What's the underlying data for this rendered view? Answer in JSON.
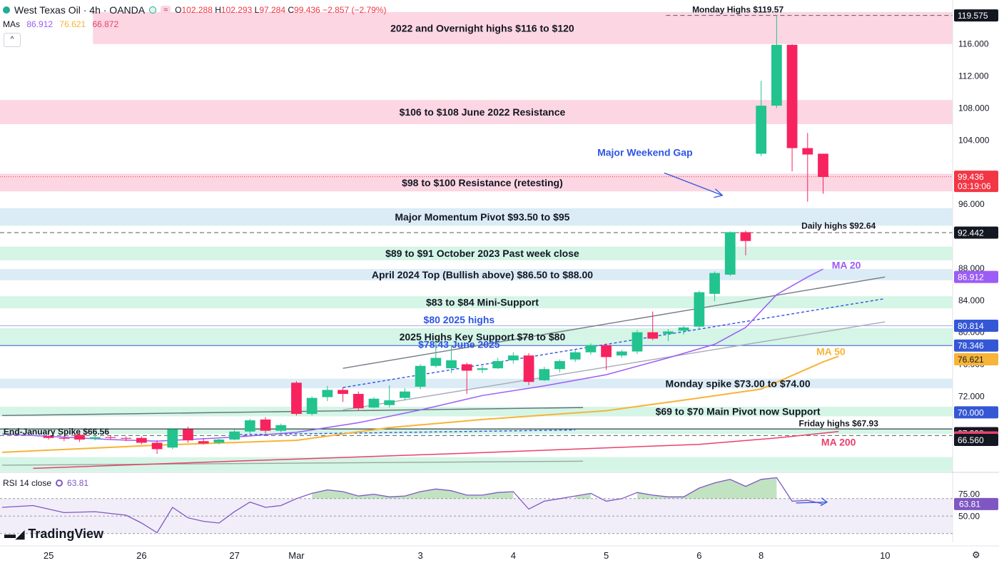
{
  "header": {
    "symbol": "West Texas Oil · 4h · OANDA",
    "badge": "≈",
    "ohlc": [
      {
        "k": "O",
        "v": "102.288"
      },
      {
        "k": "H",
        "v": "102.293"
      },
      {
        "k": "L",
        "v": "97.284"
      },
      {
        "k": "C",
        "v": "99.436"
      },
      {
        "k": "",
        "v": "−2.857 (−2.79%)"
      }
    ],
    "mas_label": "MAs",
    "mas_values": [
      "86.912",
      "76.621",
      "66.872"
    ],
    "collapse_glyph": "^"
  },
  "rsi_header": {
    "label": "RSI 14 close",
    "value": "63.81"
  },
  "brand": "TradingView",
  "colors": {
    "bull": "#22c38e",
    "bear": "#f7235e",
    "ma20": "#9c5cf5",
    "ma50": "#f7b437",
    "ma200": "#e9416b",
    "pink_zone": "#fcd6e2",
    "blue_zone": "#dcecf6",
    "green_zone": "#d5f5e6",
    "annotation_blue": "#2f55e4",
    "rsi": "#7e57c2"
  },
  "chart_data": {
    "type": "candlestick",
    "interval": "4h",
    "ylim": [
      62.5,
      121.5
    ],
    "yticks": [
      72,
      76,
      80,
      84,
      88,
      96,
      104,
      108,
      112,
      116
    ],
    "ytick_labels": [
      "72.000",
      "76.000",
      "80.000",
      "84.000",
      "88.000",
      "96.000",
      "104.000",
      "108.000",
      "112.000",
      "116.000"
    ],
    "xlim": [
      0,
      123
    ],
    "xticks": [
      {
        "x": 6,
        "label": "25"
      },
      {
        "x": 18,
        "label": "26"
      },
      {
        "x": 30,
        "label": "27"
      },
      {
        "x": 38,
        "label": "Mar"
      },
      {
        "x": 54,
        "label": "3"
      },
      {
        "x": 66,
        "label": "4"
      },
      {
        "x": 78,
        "label": "5"
      },
      {
        "x": 90,
        "label": "6"
      },
      {
        "x": 98,
        "label": "8"
      },
      {
        "x": 114,
        "label": "10"
      }
    ],
    "candles": [
      {
        "x": 6,
        "o": 67.0,
        "h": 67.2,
        "l": 66.6,
        "c": 66.8
      },
      {
        "x": 8,
        "o": 66.8,
        "h": 67.0,
        "l": 66.4,
        "c": 66.7
      },
      {
        "x": 10,
        "o": 67.2,
        "h": 67.5,
        "l": 66.3,
        "c": 66.6
      },
      {
        "x": 12,
        "o": 66.7,
        "h": 67.3,
        "l": 66.5,
        "c": 66.9
      },
      {
        "x": 14,
        "o": 66.9,
        "h": 67.1,
        "l": 66.6,
        "c": 66.8
      },
      {
        "x": 16,
        "o": 66.8,
        "h": 67.0,
        "l": 66.4,
        "c": 66.7
      },
      {
        "x": 18,
        "o": 66.8,
        "h": 67.0,
        "l": 66.0,
        "c": 66.2
      },
      {
        "x": 20,
        "o": 66.2,
        "h": 66.5,
        "l": 64.8,
        "c": 65.4
      },
      {
        "x": 22,
        "o": 65.6,
        "h": 68.0,
        "l": 65.4,
        "c": 67.9
      },
      {
        "x": 24,
        "o": 67.9,
        "h": 68.2,
        "l": 66.2,
        "c": 66.5
      },
      {
        "x": 26,
        "o": 66.4,
        "h": 66.8,
        "l": 66.0,
        "c": 66.1
      },
      {
        "x": 28,
        "o": 66.2,
        "h": 66.7,
        "l": 66.0,
        "c": 66.6
      },
      {
        "x": 30,
        "o": 66.6,
        "h": 67.8,
        "l": 66.5,
        "c": 67.6
      },
      {
        "x": 32,
        "o": 67.6,
        "h": 69.2,
        "l": 67.3,
        "c": 69.0
      },
      {
        "x": 34,
        "o": 69.1,
        "h": 69.4,
        "l": 67.4,
        "c": 67.7
      },
      {
        "x": 36,
        "o": 67.7,
        "h": 68.6,
        "l": 67.5,
        "c": 68.4
      },
      {
        "x": 38,
        "o": 73.7,
        "h": 73.9,
        "l": 69.6,
        "c": 69.8
      },
      {
        "x": 40,
        "o": 69.8,
        "h": 72.0,
        "l": 69.6,
        "c": 71.8
      },
      {
        "x": 42,
        "o": 71.9,
        "h": 73.3,
        "l": 71.4,
        "c": 72.8
      },
      {
        "x": 44,
        "o": 72.8,
        "h": 73.1,
        "l": 71.3,
        "c": 72.3
      },
      {
        "x": 46,
        "o": 72.3,
        "h": 72.6,
        "l": 70.2,
        "c": 70.5
      },
      {
        "x": 48,
        "o": 70.6,
        "h": 71.9,
        "l": 70.5,
        "c": 71.7
      },
      {
        "x": 50,
        "o": 70.9,
        "h": 73.4,
        "l": 70.6,
        "c": 71.5
      },
      {
        "x": 52,
        "o": 71.8,
        "h": 73.0,
        "l": 71.5,
        "c": 72.6
      },
      {
        "x": 54,
        "o": 73.2,
        "h": 76.0,
        "l": 72.9,
        "c": 75.8
      },
      {
        "x": 56,
        "o": 75.8,
        "h": 78.7,
        "l": 75.6,
        "c": 76.8
      },
      {
        "x": 58,
        "o": 75.5,
        "h": 78.3,
        "l": 74.9,
        "c": 76.5
      },
      {
        "x": 60,
        "o": 76.0,
        "h": 76.2,
        "l": 72.3,
        "c": 75.2
      },
      {
        "x": 62,
        "o": 75.3,
        "h": 75.8,
        "l": 74.9,
        "c": 75.5
      },
      {
        "x": 64,
        "o": 75.5,
        "h": 76.8,
        "l": 75.4,
        "c": 76.4
      },
      {
        "x": 66,
        "o": 76.5,
        "h": 77.5,
        "l": 76.1,
        "c": 77.1
      },
      {
        "x": 68,
        "o": 77.1,
        "h": 77.4,
        "l": 73.4,
        "c": 73.8
      },
      {
        "x": 70,
        "o": 74.0,
        "h": 75.7,
        "l": 73.9,
        "c": 75.4
      },
      {
        "x": 72,
        "o": 75.4,
        "h": 76.6,
        "l": 75.0,
        "c": 76.4
      },
      {
        "x": 74,
        "o": 76.6,
        "h": 77.8,
        "l": 76.3,
        "c": 77.5
      },
      {
        "x": 76,
        "o": 77.5,
        "h": 78.6,
        "l": 77.2,
        "c": 78.4
      },
      {
        "x": 78,
        "o": 78.4,
        "h": 78.6,
        "l": 75.3,
        "c": 76.9
      },
      {
        "x": 80,
        "o": 77.1,
        "h": 77.8,
        "l": 76.8,
        "c": 77.6
      },
      {
        "x": 82,
        "o": 77.6,
        "h": 80.3,
        "l": 77.3,
        "c": 80.0
      },
      {
        "x": 84,
        "o": 80.0,
        "h": 82.6,
        "l": 79.0,
        "c": 79.2
      },
      {
        "x": 86,
        "o": 79.8,
        "h": 80.4,
        "l": 78.9,
        "c": 80.1
      },
      {
        "x": 88,
        "o": 80.2,
        "h": 80.8,
        "l": 79.7,
        "c": 80.6
      },
      {
        "x": 90,
        "o": 80.7,
        "h": 85.2,
        "l": 80.5,
        "c": 85.0
      },
      {
        "x": 92,
        "o": 84.8,
        "h": 87.6,
        "l": 83.9,
        "c": 87.4
      },
      {
        "x": 94,
        "o": 87.2,
        "h": 92.6,
        "l": 87.0,
        "c": 92.5
      },
      {
        "x": 96,
        "o": 92.5,
        "h": 92.7,
        "l": 89.6,
        "c": 91.4
      },
      {
        "x": 98,
        "o": 102.3,
        "h": 111.4,
        "l": 102.0,
        "c": 108.3
      },
      {
        "x": 100,
        "o": 108.3,
        "h": 119.57,
        "l": 108.0,
        "c": 115.9
      },
      {
        "x": 102,
        "o": 115.9,
        "h": 116.0,
        "l": 100.1,
        "c": 103.0
      },
      {
        "x": 104,
        "o": 103.0,
        "h": 104.9,
        "l": 96.3,
        "c": 102.2
      },
      {
        "x": 106,
        "o": 102.3,
        "h": 102.3,
        "l": 97.3,
        "c": 99.4
      }
    ],
    "series": [
      {
        "name": "MA 20",
        "color": "#9c5cf5",
        "points": [
          [
            0,
            67.3
          ],
          [
            14,
            66.6
          ],
          [
            20,
            66.4
          ],
          [
            30,
            66.9
          ],
          [
            38,
            67.5
          ],
          [
            46,
            68.7
          ],
          [
            54,
            70.3
          ],
          [
            62,
            72.1
          ],
          [
            70,
            73.3
          ],
          [
            78,
            74.7
          ],
          [
            86,
            76.8
          ],
          [
            92,
            78.5
          ],
          [
            96,
            80.6
          ],
          [
            100,
            84.7
          ],
          [
            104,
            86.9
          ],
          [
            106,
            87.9
          ]
        ]
      },
      {
        "name": "MA 50",
        "color": "#f7b437",
        "points": [
          [
            0,
            65.0
          ],
          [
            20,
            65.9
          ],
          [
            38,
            66.5
          ],
          [
            50,
            68.1
          ],
          [
            62,
            69.1
          ],
          [
            78,
            70.2
          ],
          [
            90,
            71.8
          ],
          [
            98,
            72.9
          ],
          [
            102,
            74.6
          ],
          [
            106,
            76.3
          ],
          [
            108,
            77.0
          ]
        ]
      },
      {
        "name": "MA 200",
        "color": "#e9416b",
        "points": [
          [
            4,
            63.0
          ],
          [
            30,
            63.9
          ],
          [
            60,
            64.9
          ],
          [
            90,
            66.0
          ],
          [
            100,
            66.8
          ],
          [
            108,
            67.6
          ]
        ]
      }
    ],
    "trendlines": [
      {
        "points": [
          [
            44,
            75.5
          ],
          [
            114,
            86.9
          ]
        ],
        "color": "#757b85",
        "dash": false
      },
      {
        "points": [
          [
            44,
            73.1
          ],
          [
            114,
            84.2
          ]
        ],
        "color": "#2f55e4",
        "dash": true
      },
      {
        "points": [
          [
            44,
            70.3
          ],
          [
            114,
            81.3
          ]
        ],
        "color": "#a6adb8",
        "dash": false
      },
      {
        "points": [
          [
            0,
            69.6
          ],
          [
            75,
            70.6
          ]
        ],
        "color": "#66727e",
        "dash": false
      },
      {
        "points": [
          [
            30,
            67.2
          ],
          [
            74,
            67.8
          ]
        ],
        "color": "#2f55e4",
        "dash": true
      },
      {
        "points": [
          [
            0,
            63.4
          ],
          [
            75,
            63.9
          ]
        ],
        "color": "#9aa7a0",
        "dash": false
      }
    ],
    "hlines": [
      {
        "y": 119.575,
        "color": "#555c66",
        "dash": true,
        "x0": 86
      },
      {
        "y": 92.442,
        "color": "#555c66",
        "dash": true,
        "x0": 0
      },
      {
        "y": 99.436,
        "color": "#f23645",
        "dash": "dot",
        "x0": 0
      },
      {
        "y": 80.814,
        "color": "#a3b0e6",
        "dash": false,
        "x0": 0
      },
      {
        "y": 78.346,
        "color": "#3457d5",
        "dash": false,
        "x0": 0
      },
      {
        "y": 67.93,
        "color": "#131722",
        "dash": false,
        "x0": 0
      },
      {
        "y": 67.1,
        "color": "#555c66",
        "dash": true,
        "x0": 0
      }
    ],
    "zones": [
      {
        "y0": 116.0,
        "y1": 120.0,
        "color": "#fcd6e2",
        "x0": 12,
        "label": "2022 and Overnight highs $116 to $120"
      },
      {
        "y0": 106.0,
        "y1": 109.0,
        "color": "#fcd6e2",
        "x0": 0,
        "label": "$106 to $108 June 2022 Resistance"
      },
      {
        "y0": 97.6,
        "y1": 99.8,
        "color": "#fcd6e2",
        "x0": 0,
        "label": "$98 to $100 Resistance (retesting)"
      },
      {
        "y0": 93.3,
        "y1": 95.5,
        "color": "#dcecf6",
        "x0": 0,
        "label": "Major Momentum Pivot $93.50 to $95"
      },
      {
        "y0": 89.0,
        "y1": 90.7,
        "color": "#d5f5e6",
        "x0": 0,
        "label": "$89 to $91 October 2023 Past week close"
      },
      {
        "y0": 86.5,
        "y1": 87.9,
        "color": "#dcecf6",
        "x0": 0,
        "label": "April 2024 Top (Bullish above) $86.50 to $88.00"
      },
      {
        "y0": 83.0,
        "y1": 84.5,
        "color": "#d5f5e6",
        "x0": 0,
        "label": "$83 to $84 Mini-Support"
      },
      {
        "y0": 78.4,
        "y1": 80.5,
        "color": "#d5f5e6",
        "x0": 0,
        "label": "2025 Highs Key Support $78 to $80"
      },
      {
        "y0": 73.0,
        "y1": 74.2,
        "color": "#dcecf6",
        "x0": 0,
        "label": "Monday spike $73.00 to $74.00"
      },
      {
        "y0": 69.5,
        "y1": 70.7,
        "color": "#d5f5e6",
        "x0": 0,
        "label": "$69 to $70 Main Pivot now Support"
      },
      {
        "y0": 67.3,
        "y1": 68.0,
        "color": "#d5f5e6",
        "x0": 0,
        "label": ""
      },
      {
        "y0": 62.6,
        "y1": 64.4,
        "color": "#d5f5e6",
        "x0": 0,
        "label": ""
      }
    ],
    "annotations": [
      {
        "text": "Monday Highs $119.57",
        "x": 95,
        "y": 120.3,
        "color": "#131722"
      },
      {
        "text": "Daily highs $92.64",
        "x": 108,
        "y": 93.3,
        "color": "#131722"
      },
      {
        "text": "Friday highs $67.93",
        "x": 108,
        "y": 68.6,
        "color": "#131722"
      },
      {
        "text": "End-January Spike $66.56",
        "x": 7,
        "y": 67.6,
        "color": "#131722"
      },
      {
        "text": "Major Weekend Gap",
        "x": 83,
        "y": 102.4,
        "color": "#2f55e4"
      },
      {
        "text": "$80 2025 highs",
        "x": 59,
        "y": 81.5,
        "color": "#2f55e4"
      },
      {
        "text": "$78.43 June 2025",
        "x": 59,
        "y": 78.4,
        "color": "#2f55e4"
      },
      {
        "text": "MA 20",
        "x": 109,
        "y": 88.3,
        "color": "#9c5cf5"
      },
      {
        "text": "MA 50",
        "x": 107,
        "y": 77.5,
        "color": "#f7b437"
      },
      {
        "text": "MA 200",
        "x": 108,
        "y": 66.2,
        "color": "#e9416b"
      }
    ],
    "price_labels": [
      {
        "y": 119.575,
        "text": "119.575",
        "bg": "#131722",
        "fg": "#ffffff"
      },
      {
        "y": 99.436,
        "text": "99.436",
        "sub": "03:19:06",
        "bg": "#f23645",
        "fg": "#ffffff"
      },
      {
        "y": 92.442,
        "text": "92.442",
        "bg": "#131722",
        "fg": "#ffffff"
      },
      {
        "y": 86.912,
        "text": "86.912",
        "bg": "#9c5cf5",
        "fg": "#ffffff"
      },
      {
        "y": 80.814,
        "text": "80.814",
        "bg": "#3457d5",
        "fg": "#ffffff"
      },
      {
        "y": 78.346,
        "text": "78.346",
        "bg": "#3457d5",
        "fg": "#ffffff"
      },
      {
        "y": 76.621,
        "text": "76.621",
        "bg": "#f7b437",
        "fg": "#131722"
      },
      {
        "y": 70.0,
        "text": "70.000",
        "bg": "#3457d5",
        "fg": "#ffffff"
      },
      {
        "y": 67.398,
        "text": "67.398",
        "bg": "#131722",
        "fg": "#ffffff"
      },
      {
        "y": 66.872,
        "text": "66.872",
        "bg": "#e9416b",
        "fg": "#ffffff"
      },
      {
        "y": 66.56,
        "text": "66.560",
        "bg": "#131722",
        "fg": "#ffffff"
      }
    ],
    "rsi": {
      "ylim": [
        20,
        100
      ],
      "ticks": [
        {
          "v": 75,
          "label": "75.00"
        },
        {
          "v": 50,
          "label": "50.00"
        }
      ],
      "band": [
        30,
        70
      ],
      "value_label": "63.81",
      "points": [
        [
          0,
          60
        ],
        [
          4,
          62
        ],
        [
          8,
          54
        ],
        [
          12,
          55
        ],
        [
          16,
          51
        ],
        [
          18,
          42
        ],
        [
          20,
          31
        ],
        [
          22,
          60
        ],
        [
          24,
          48
        ],
        [
          26,
          44
        ],
        [
          28,
          42
        ],
        [
          30,
          55
        ],
        [
          32,
          66
        ],
        [
          34,
          60
        ],
        [
          36,
          62
        ],
        [
          38,
          70
        ],
        [
          40,
          76
        ],
        [
          42,
          80
        ],
        [
          44,
          78
        ],
        [
          46,
          73
        ],
        [
          48,
          75
        ],
        [
          50,
          72
        ],
        [
          52,
          73
        ],
        [
          54,
          78
        ],
        [
          56,
          81
        ],
        [
          58,
          79
        ],
        [
          60,
          74
        ],
        [
          62,
          74
        ],
        [
          64,
          77
        ],
        [
          66,
          78
        ],
        [
          68,
          58
        ],
        [
          70,
          67
        ],
        [
          72,
          70
        ],
        [
          74,
          73
        ],
        [
          76,
          76
        ],
        [
          78,
          67
        ],
        [
          80,
          70
        ],
        [
          82,
          77
        ],
        [
          84,
          74
        ],
        [
          86,
          72
        ],
        [
          88,
          72
        ],
        [
          90,
          82
        ],
        [
          92,
          88
        ],
        [
          94,
          92
        ],
        [
          96,
          84
        ],
        [
          98,
          92
        ],
        [
          100,
          94
        ],
        [
          102,
          67
        ],
        [
          104,
          68
        ],
        [
          106,
          63.8
        ]
      ]
    }
  }
}
